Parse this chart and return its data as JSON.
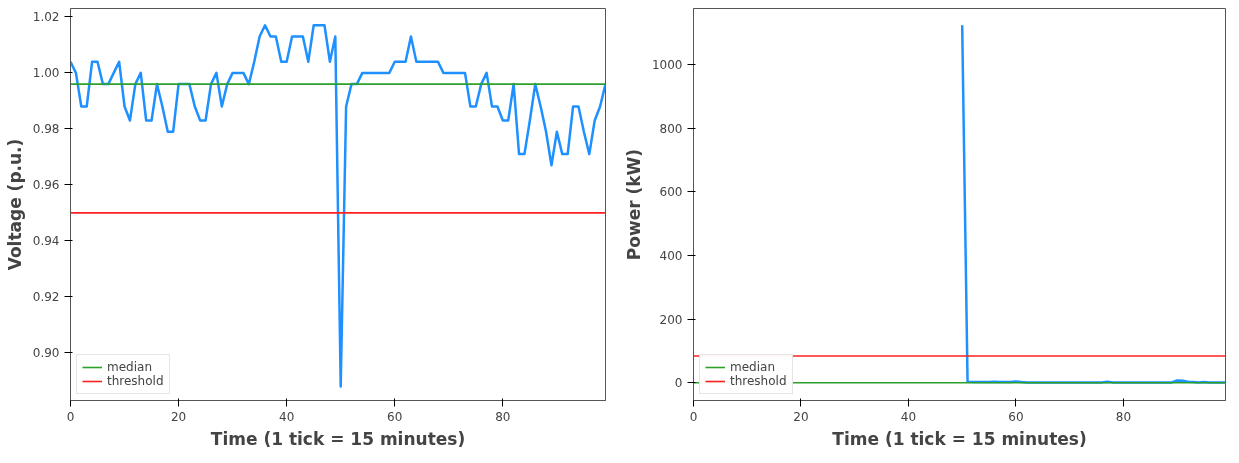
{
  "chart_data": [
    {
      "type": "line",
      "xlabel": "Time (1 tick = 15 minutes)",
      "ylabel": "Voltage (p.u.)",
      "x": [
        0,
        1,
        2,
        3,
        4,
        5,
        6,
        7,
        8,
        9,
        10,
        11,
        12,
        13,
        14,
        15,
        16,
        17,
        18,
        19,
        20,
        21,
        22,
        23,
        24,
        25,
        26,
        27,
        28,
        29,
        30,
        31,
        32,
        33,
        34,
        35,
        36,
        37,
        38,
        39,
        40,
        41,
        42,
        43,
        44,
        45,
        46,
        47,
        48,
        49,
        50,
        51,
        52,
        53,
        54,
        55,
        56,
        57,
        58,
        59,
        60,
        61,
        62,
        63,
        64,
        65,
        66,
        67,
        68,
        69,
        70,
        71,
        72,
        73,
        74,
        75,
        76,
        77,
        78,
        79,
        80,
        81,
        82,
        83,
        84,
        85,
        86,
        87,
        88,
        89,
        90,
        91,
        92,
        93,
        94,
        95,
        96,
        97,
        98,
        99
      ],
      "series": [
        {
          "color": "#1e90ff",
          "values": [
            1.004,
            1.0,
            0.988,
            0.988,
            1.004,
            1.004,
            0.996,
            0.996,
            1.0,
            1.004,
            0.988,
            0.983,
            0.996,
            1.0,
            0.983,
            0.983,
            0.996,
            0.988,
            0.979,
            0.979,
            0.996,
            0.996,
            0.996,
            0.988,
            0.983,
            0.983,
            0.996,
            1.0,
            0.988,
            0.996,
            1.0,
            1.0,
            1.0,
            0.996,
            1.004,
            1.013,
            1.017,
            1.013,
            1.013,
            1.004,
            1.004,
            1.013,
            1.013,
            1.013,
            1.004,
            1.017,
            1.017,
            1.017,
            1.004,
            1.013,
            0.888,
            0.988,
            0.996,
            0.996,
            1.0,
            1.0,
            1.0,
            1.0,
            1.0,
            1.0,
            1.004,
            1.004,
            1.004,
            1.013,
            1.004,
            1.004,
            1.004,
            1.004,
            1.004,
            1.0,
            1.0,
            1.0,
            1.0,
            1.0,
            0.988,
            0.988,
            0.996,
            1.0,
            0.988,
            0.988,
            0.983,
            0.983,
            0.996,
            0.971,
            0.971,
            0.983,
            0.996,
            0.988,
            0.979,
            0.967,
            0.979,
            0.971,
            0.971,
            0.988,
            0.988,
            0.979,
            0.971,
            0.983,
            0.988,
            0.996
          ]
        }
      ],
      "xlim": [
        0,
        99
      ],
      "xticks": [
        0,
        20,
        40,
        60,
        80
      ],
      "ylim": [
        0.883,
        1.023
      ],
      "yticks": [
        {
          "value": 0.9,
          "label": "0.90"
        },
        {
          "value": 0.92,
          "label": "0.92"
        },
        {
          "value": 0.94,
          "label": "0.94"
        },
        {
          "value": 0.96,
          "label": "0.96"
        },
        {
          "value": 0.98,
          "label": "0.98"
        },
        {
          "value": 1.0,
          "label": "1.00"
        },
        {
          "value": 1.02,
          "label": "1.02"
        }
      ],
      "ref_lines": [
        {
          "axis": "y",
          "value": 0.996,
          "label": "median",
          "color": "#2ca02c"
        },
        {
          "axis": "y",
          "value": 0.95,
          "label": "threshold",
          "color": "#ff2020"
        }
      ],
      "legend": "bottom left",
      "grid": false,
      "marker": "none",
      "line_style": "solid"
    },
    {
      "type": "line",
      "xlabel": "Time (1 tick = 15 minutes)",
      "ylabel": "Power (kW)",
      "x": [
        50,
        51,
        52,
        53,
        54,
        55,
        56,
        57,
        58,
        59,
        60,
        61,
        62,
        63,
        64,
        65,
        66,
        67,
        68,
        69,
        70,
        71,
        72,
        73,
        74,
        75,
        76,
        77,
        78,
        79,
        80,
        81,
        82,
        83,
        84,
        85,
        86,
        87,
        88,
        89,
        90,
        91,
        92,
        93,
        94,
        95,
        96,
        97,
        98,
        99
      ],
      "series": [
        {
          "color": "#1e90ff",
          "values": [
            1124,
            3,
            2,
            2,
            2,
            2,
            3,
            2,
            2,
            2,
            4,
            2,
            1,
            1,
            1,
            1,
            1,
            1,
            1,
            1,
            1,
            1,
            1,
            1,
            1,
            1,
            1,
            3,
            1,
            1,
            1,
            1,
            1,
            1,
            1,
            1,
            1,
            1,
            1,
            1,
            7,
            6,
            3,
            2,
            1,
            2,
            1,
            1,
            1,
            1
          ]
        }
      ],
      "xlim": [
        0,
        99
      ],
      "xticks": [
        0,
        20,
        40,
        60,
        80
      ],
      "ylim": [
        -56,
        1177
      ],
      "yticks": [
        0,
        200,
        400,
        600,
        800,
        1000
      ],
      "ref_lines": [
        {
          "axis": "y",
          "value": 0,
          "label": "median",
          "color": "#2ca02c"
        },
        {
          "axis": "y",
          "value": 84,
          "label": "threshold",
          "color": "#ff2020"
        }
      ],
      "legend": "bottom left",
      "grid": false,
      "marker": "none",
      "line_style": "solid"
    }
  ]
}
